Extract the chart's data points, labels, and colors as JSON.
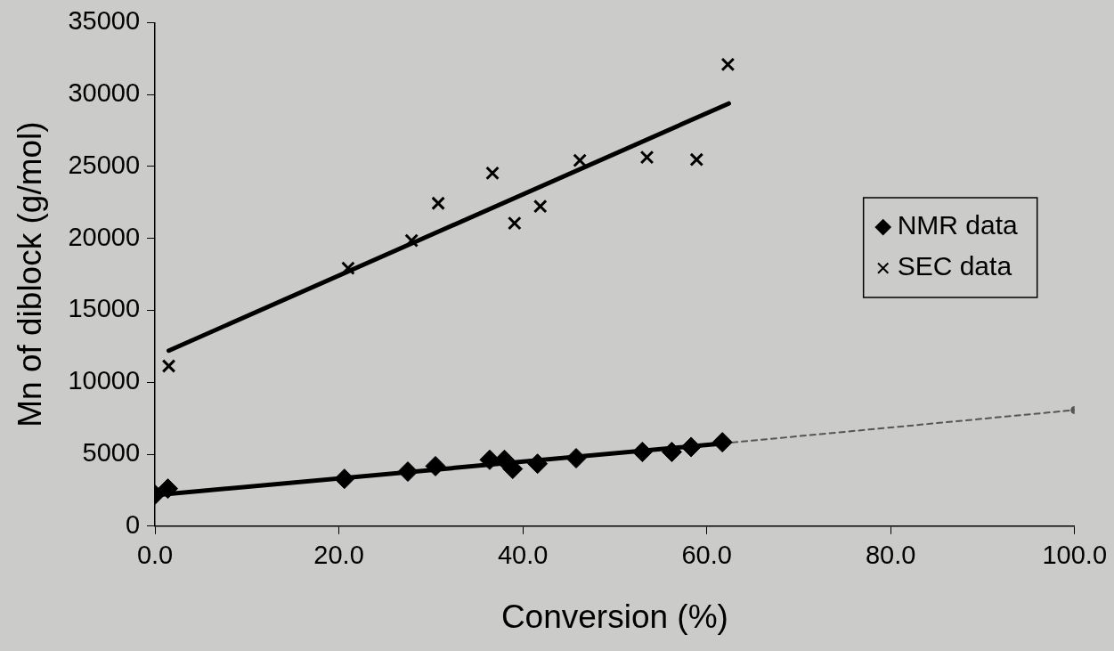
{
  "chart_data": {
    "type": "scatter",
    "xlabel": "Conversion (%)",
    "ylabel": "Mn of diblock (g/mol)",
    "xlim": [
      0,
      100
    ],
    "ylim": [
      0,
      35000
    ],
    "xticks": [
      {
        "value": 0,
        "label": "0.0"
      },
      {
        "value": 20,
        "label": "20.0"
      },
      {
        "value": 40,
        "label": "40.0"
      },
      {
        "value": 60,
        "label": "60.0"
      },
      {
        "value": 80,
        "label": "80.0"
      },
      {
        "value": 100,
        "label": "100.0"
      }
    ],
    "yticks": [
      0,
      5000,
      10000,
      15000,
      20000,
      25000,
      30000,
      35000
    ],
    "grid": false,
    "legend": "right",
    "series": [
      {
        "name": "NMR data",
        "type": "scatter",
        "marker": "diamond",
        "color": "#000000",
        "x": [
          0,
          1.4,
          20.6,
          27.5,
          30.5,
          36.4,
          38.0,
          38.9,
          41.6,
          45.8,
          53.0,
          56.2,
          58.3,
          61.7
        ],
        "values": [
          2190,
          2610,
          3290,
          3790,
          4170,
          4610,
          4610,
          3980,
          4340,
          4720,
          5160,
          5160,
          5500,
          5830
        ]
      },
      {
        "name": "SEC data",
        "type": "scatter",
        "marker": "cross",
        "color": "#000000",
        "x": [
          1.5,
          21.0,
          27.9,
          30.8,
          36.7,
          39.1,
          41.9,
          46.2,
          53.5,
          58.9,
          62.3
        ],
        "values": [
          11130,
          17930,
          19850,
          22440,
          24540,
          21060,
          22230,
          25420,
          25640,
          25480,
          32090
        ]
      },
      {
        "type": "line",
        "marker": "none",
        "line_style": "solid",
        "color": "#000000",
        "x": [
          0,
          61.7
        ],
        "values": [
          2150,
          5750
        ]
      },
      {
        "type": "line",
        "marker": "none",
        "line_style": "solid",
        "color": "#000000",
        "x": [
          1.5,
          62.4
        ],
        "values": [
          12200,
          29380
        ]
      },
      {
        "type": "line",
        "marker": "circle",
        "line_style": "dashed",
        "color": "#555555",
        "x": [
          61.7,
          100
        ],
        "values": [
          5750,
          8070
        ]
      }
    ]
  }
}
